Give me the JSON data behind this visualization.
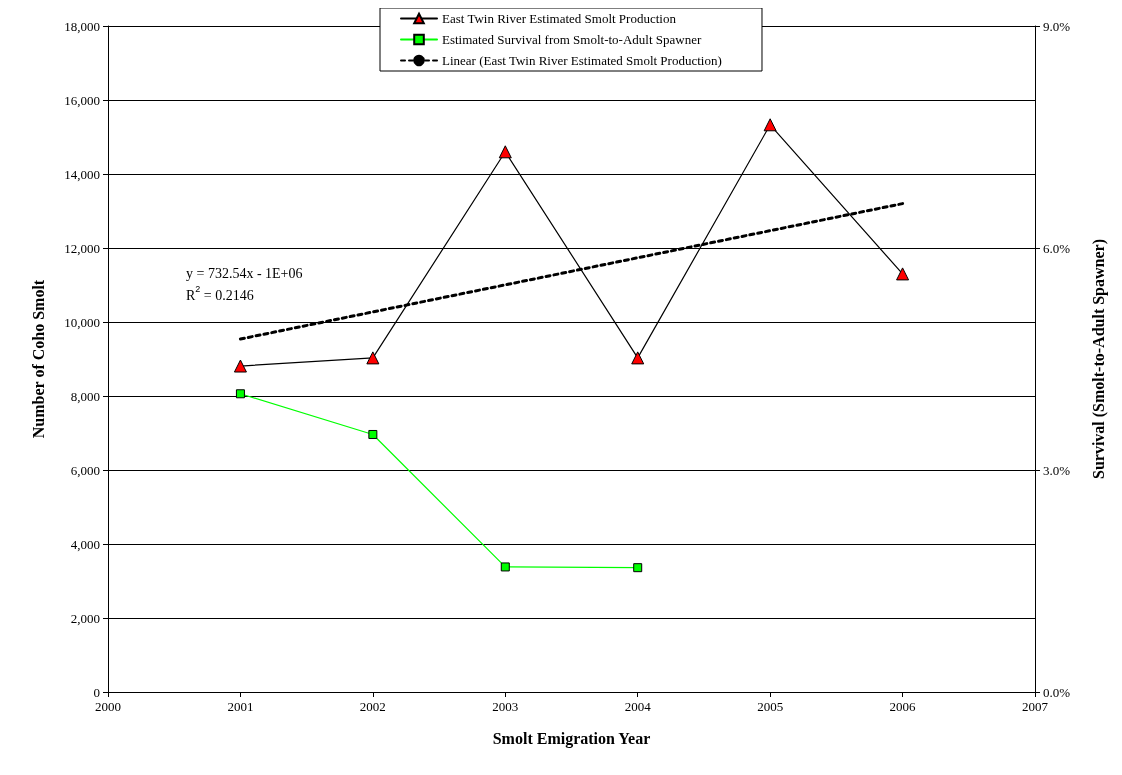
{
  "chart_data": {
    "type": "line",
    "xlabel": "Smolt Emigration Year",
    "ylabel": "Number of Coho Smolt",
    "y2label": "Survival (Smolt-to-Adult Spawner)",
    "x": [
      2001,
      2002,
      2003,
      2004,
      2005,
      2006
    ],
    "series": [
      {
        "name": "East Twin River Estimated Smolt Production",
        "color": "#ff0000",
        "marker": "triangle",
        "values": [
          8810,
          9030,
          14600,
          9030,
          15330,
          11300
        ]
      },
      {
        "name": "Estimated Survival from Smolt-to-Adult Spawner",
        "color": "#00ff00",
        "marker": "square",
        "axis": "y2",
        "values": [
          4.03,
          3.48,
          1.69,
          1.68,
          null,
          null
        ]
      },
      {
        "name": "Linear (East Twin River Estimated Smolt Production)",
        "color": "#000000",
        "marker": "none",
        "line_style": "dashed",
        "x": [
          2001,
          2006
        ],
        "values": [
          9540,
          13200
        ]
      }
    ],
    "xlim": [
      2000,
      2007
    ],
    "xticks": [
      2000,
      2001,
      2002,
      2003,
      2004,
      2005,
      2006,
      2007
    ],
    "ylim": [
      0,
      18000
    ],
    "yticks": [
      {
        "value": 0,
        "label": "0"
      },
      {
        "value": 2000,
        "label": "2,000"
      },
      {
        "value": 4000,
        "label": "4,000"
      },
      {
        "value": 6000,
        "label": "6,000"
      },
      {
        "value": 8000,
        "label": "8,000"
      },
      {
        "value": 10000,
        "label": "10,000"
      },
      {
        "value": 12000,
        "label": "12,000"
      },
      {
        "value": 14000,
        "label": "14,000"
      },
      {
        "value": 16000,
        "label": "16,000"
      },
      {
        "value": 18000,
        "label": "18,000"
      }
    ],
    "y2lim": [
      0,
      9
    ],
    "y2ticks": [
      {
        "value": 0,
        "label": "0.0%"
      },
      {
        "value": 3,
        "label": "3.0%"
      },
      {
        "value": 6,
        "label": "6.0%"
      },
      {
        "value": 9,
        "label": "9.0%"
      }
    ],
    "annotations": [
      "y = 732.54x - 1E+06\nR$^{2}$ = 0.2146"
    ],
    "grid": "y",
    "legend": "top"
  }
}
